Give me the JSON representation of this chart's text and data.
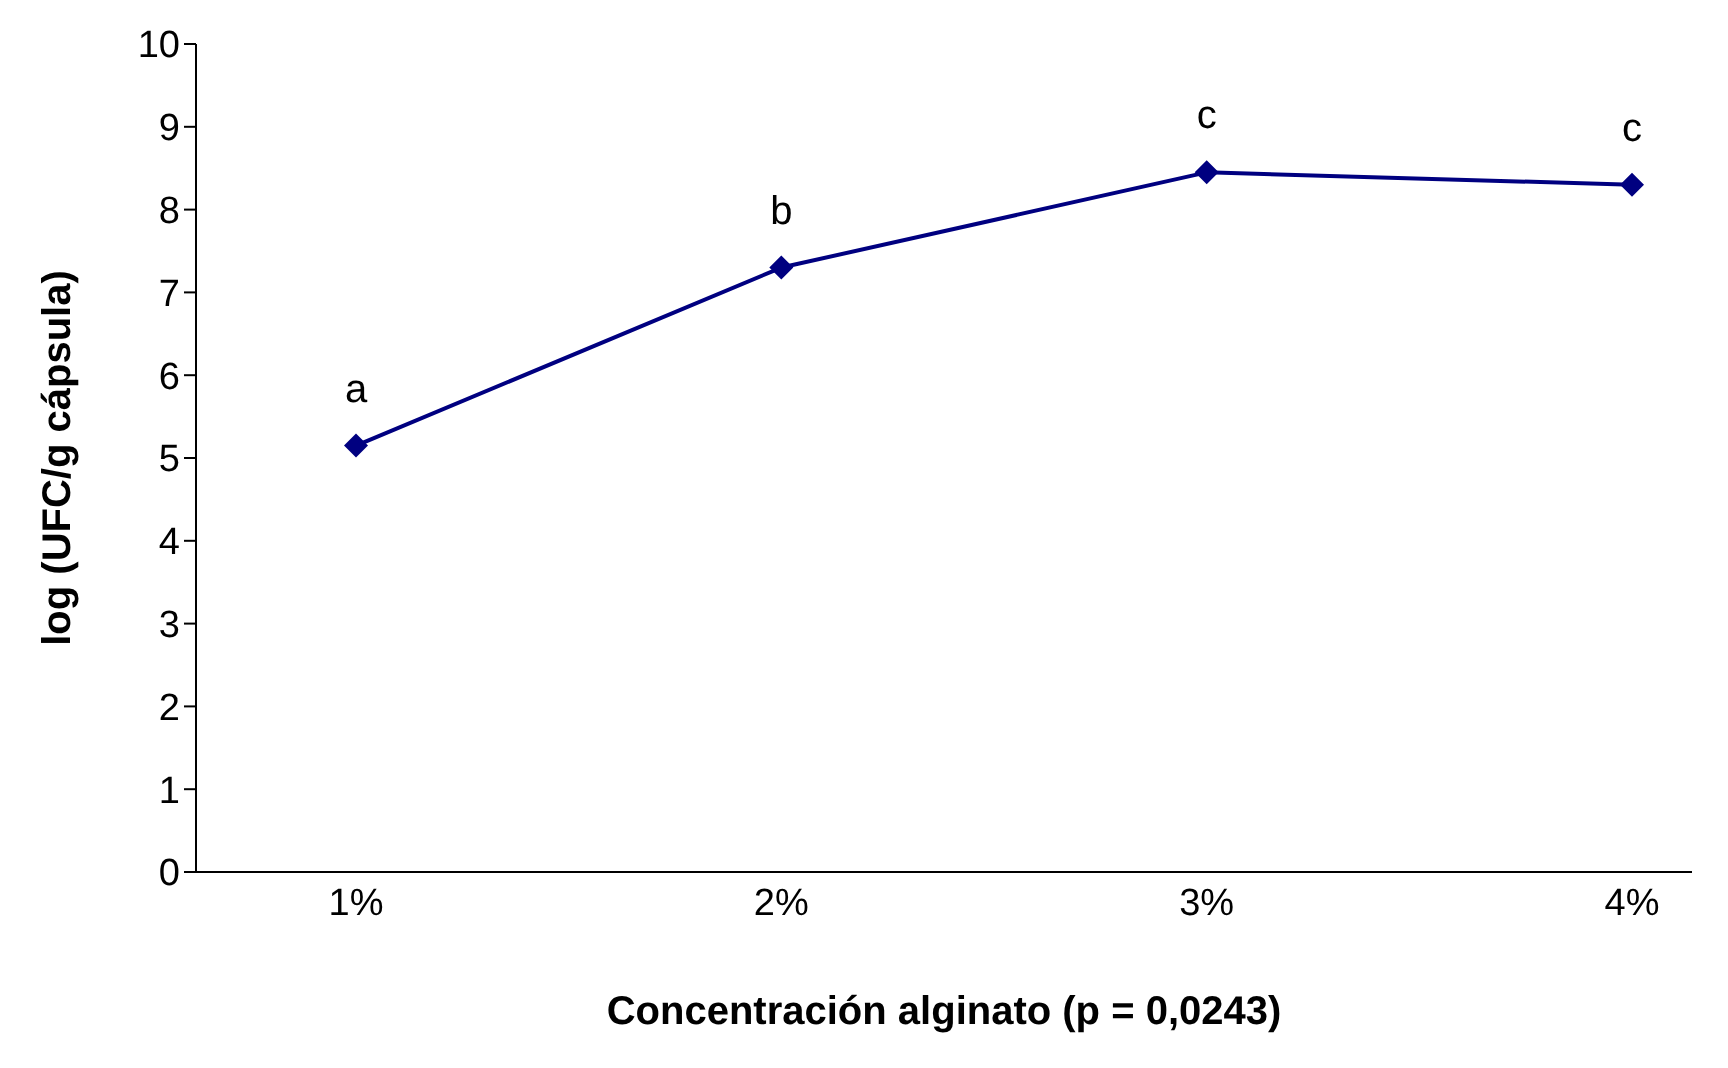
{
  "chart_data": {
    "type": "line",
    "xlabel": "Concentración alginato (p = 0,0243)",
    "ylabel": "log (UFC/g cápsula)",
    "categories": [
      "1%",
      "2%",
      "3%",
      "4%"
    ],
    "series": [
      {
        "color": "#000080",
        "values": [
          5.15,
          7.3,
          8.45,
          8.3
        ]
      }
    ],
    "ylim": [
      0,
      10
    ],
    "yticks": [
      0,
      1,
      2,
      3,
      4,
      5,
      6,
      7,
      8,
      9,
      10
    ],
    "grid": false,
    "legend": false,
    "marker": "diamond",
    "line_style": "solid",
    "annotations": [
      {
        "text": "a",
        "x": "1%",
        "y": 5.15
      },
      {
        "text": "b",
        "x": "2%",
        "y": 7.3
      },
      {
        "text": "c",
        "x": "3%",
        "y": 8.45
      },
      {
        "text": "c",
        "x": "4%",
        "y": 8.3
      }
    ]
  }
}
